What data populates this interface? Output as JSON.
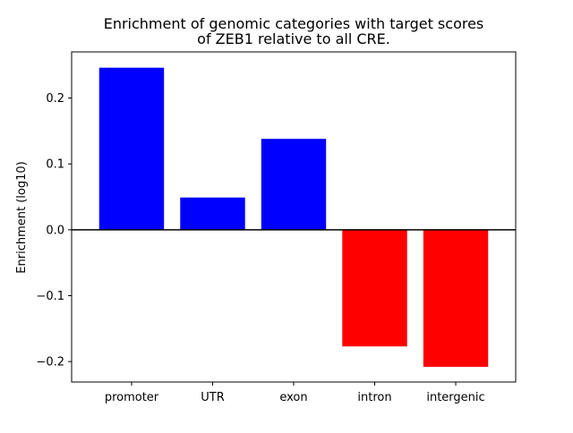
{
  "chart_data": {
    "type": "bar",
    "title_line1": "Enrichment of genomic categories with target scores",
    "title_line2": "of ZEB1 relative to all CRE.",
    "xlabel": "",
    "ylabel": "Enrichment (log10)",
    "categories": [
      "promoter",
      "UTR",
      "exon",
      "intron",
      "intergenic"
    ],
    "values": [
      0.246,
      0.049,
      0.138,
      -0.177,
      -0.208
    ],
    "ylim": [
      -0.231,
      0.27
    ],
    "yticks": [
      -0.2,
      -0.1,
      0.0,
      0.1,
      0.2
    ],
    "ytick_labels": [
      "−0.2",
      "−0.1",
      "0.0",
      "0.1",
      "0.2"
    ],
    "colors": {
      "positive": "#0000ff",
      "negative": "#ff0000",
      "zero_line": "#000000"
    },
    "grid": false,
    "legend": "none"
  }
}
